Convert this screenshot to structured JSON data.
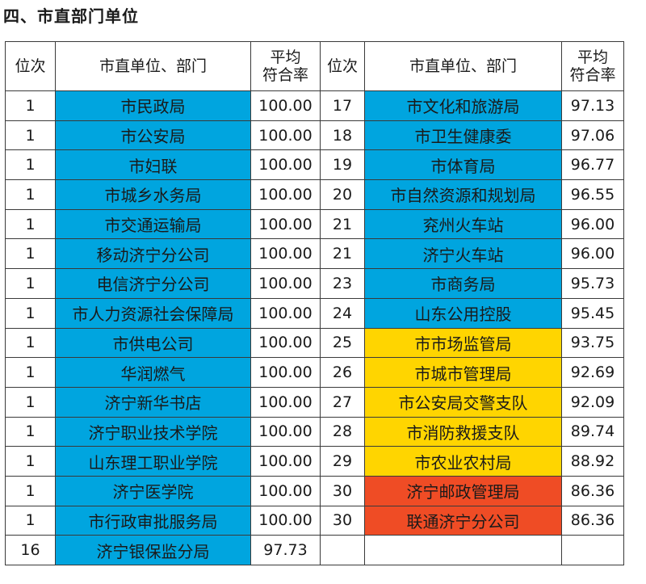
{
  "title": "四、市直部门单位",
  "headers": {
    "rank": "位次",
    "name": "市直单位、部门",
    "rate_line1": "平均",
    "rate_line2": "符合率"
  },
  "colors": {
    "blue": "#00a5df",
    "yellow": "#ffd500",
    "red": "#ef4c25"
  },
  "left": [
    {
      "rank": "1",
      "name": "市民政局",
      "rate": "100.00",
      "color": "blue"
    },
    {
      "rank": "1",
      "name": "市公安局",
      "rate": "100.00",
      "color": "blue"
    },
    {
      "rank": "1",
      "name": "市妇联",
      "rate": "100.00",
      "color": "blue"
    },
    {
      "rank": "1",
      "name": "市城乡水务局",
      "rate": "100.00",
      "color": "blue"
    },
    {
      "rank": "1",
      "name": "市交通运输局",
      "rate": "100.00",
      "color": "blue"
    },
    {
      "rank": "1",
      "name": "移动济宁分公司",
      "rate": "100.00",
      "color": "blue"
    },
    {
      "rank": "1",
      "name": "电信济宁分公司",
      "rate": "100.00",
      "color": "blue"
    },
    {
      "rank": "1",
      "name": "市人力资源社会保障局",
      "rate": "100.00",
      "color": "blue"
    },
    {
      "rank": "1",
      "name": "市供电公司",
      "rate": "100.00",
      "color": "blue"
    },
    {
      "rank": "1",
      "name": "华润燃气",
      "rate": "100.00",
      "color": "blue"
    },
    {
      "rank": "1",
      "name": "济宁新华书店",
      "rate": "100.00",
      "color": "blue"
    },
    {
      "rank": "1",
      "name": "济宁职业技术学院",
      "rate": "100.00",
      "color": "blue"
    },
    {
      "rank": "1",
      "name": "山东理工职业学院",
      "rate": "100.00",
      "color": "blue"
    },
    {
      "rank": "1",
      "name": "济宁医学院",
      "rate": "100.00",
      "color": "blue"
    },
    {
      "rank": "1",
      "name": "市行政审批服务局",
      "rate": "100.00",
      "color": "blue"
    },
    {
      "rank": "16",
      "name": "济宁银保监分局",
      "rate": "97.73",
      "color": "blue"
    }
  ],
  "right": [
    {
      "rank": "17",
      "name": "市文化和旅游局",
      "rate": "97.13",
      "color": "blue"
    },
    {
      "rank": "18",
      "name": "市卫生健康委",
      "rate": "97.06",
      "color": "blue"
    },
    {
      "rank": "19",
      "name": "市体育局",
      "rate": "96.77",
      "color": "blue"
    },
    {
      "rank": "20",
      "name": "市自然资源和规划局",
      "rate": "96.55",
      "color": "blue"
    },
    {
      "rank": "21",
      "name": "兖州火车站",
      "rate": "96.00",
      "color": "blue"
    },
    {
      "rank": "21",
      "name": "济宁火车站",
      "rate": "96.00",
      "color": "blue"
    },
    {
      "rank": "23",
      "name": "市商务局",
      "rate": "95.73",
      "color": "blue"
    },
    {
      "rank": "24",
      "name": "山东公用控股",
      "rate": "95.45",
      "color": "blue"
    },
    {
      "rank": "25",
      "name": "市市场监管局",
      "rate": "93.75",
      "color": "yellow"
    },
    {
      "rank": "26",
      "name": "市城市管理局",
      "rate": "92.69",
      "color": "yellow"
    },
    {
      "rank": "27",
      "name": "市公安局交警支队",
      "rate": "92.09",
      "color": "yellow"
    },
    {
      "rank": "28",
      "name": "市消防救援支队",
      "rate": "89.74",
      "color": "yellow"
    },
    {
      "rank": "29",
      "name": "市农业农村局",
      "rate": "88.92",
      "color": "yellow"
    },
    {
      "rank": "30",
      "name": "济宁邮政管理局",
      "rate": "86.36",
      "color": "red"
    },
    {
      "rank": "30",
      "name": "联通济宁分公司",
      "rate": "86.36",
      "color": "red"
    },
    {
      "rank": "",
      "name": "",
      "rate": "",
      "color": ""
    }
  ]
}
